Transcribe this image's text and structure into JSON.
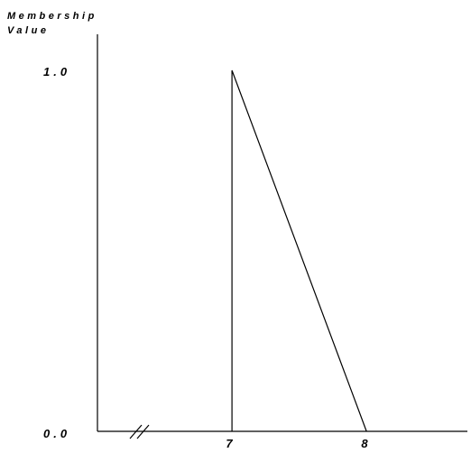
{
  "chart_data": {
    "type": "line",
    "title": "",
    "ylabel_lines": [
      "Membership",
      "Value"
    ],
    "xlabel": "",
    "y_ticks": [
      {
        "value": 1.0,
        "label": "1.0"
      },
      {
        "value": 0.0,
        "label": "0.0"
      }
    ],
    "x_ticks": [
      {
        "value": 7,
        "label": "7"
      },
      {
        "value": 8,
        "label": "8"
      }
    ],
    "axis_break_on_x": true,
    "ylim": [
      0,
      1
    ],
    "xlim": [
      6,
      8.75
    ],
    "grid": false,
    "series": [
      {
        "color": "#000000",
        "points": [
          {
            "x": 7,
            "y": 0
          },
          {
            "x": 7,
            "y": 1
          },
          {
            "x": 8,
            "y": 0
          }
        ]
      }
    ]
  }
}
